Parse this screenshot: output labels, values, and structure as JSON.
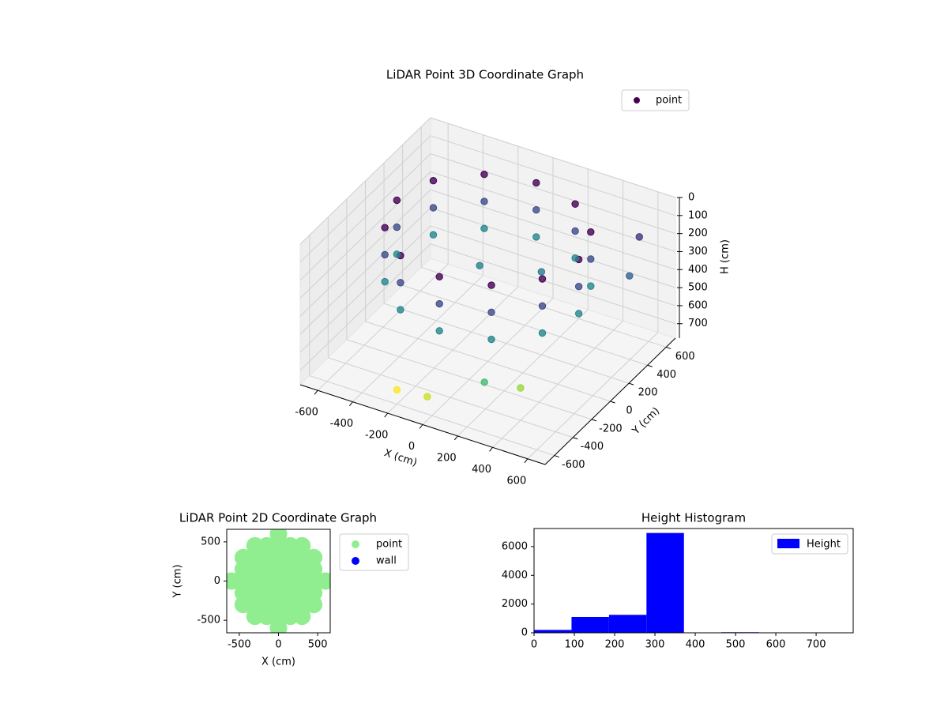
{
  "chart_data": [
    {
      "type": "scatter3d",
      "title": "LiDAR Point 3D Coordinate Graph",
      "x_label": "X (cm)",
      "y_label": "Y (cm)",
      "z_label": "H (cm)",
      "xlim": [
        -700,
        700
      ],
      "ylim": [
        -700,
        700
      ],
      "zlim": [
        780,
        0
      ],
      "xticks": [
        -600,
        -400,
        -200,
        0,
        200,
        400,
        600
      ],
      "yticks": [
        -600,
        -400,
        -200,
        0,
        200,
        400,
        600
      ],
      "zticks": [
        0,
        100,
        200,
        300,
        400,
        500,
        600,
        700
      ],
      "grid": true,
      "colormap": "viridis",
      "legend": "upper right",
      "series": [
        {
          "name": "point",
          "color": "#440154",
          "x": [
            520,
            450,
            260,
            0,
            -260,
            -450,
            -520,
            -450,
            -260,
            0,
            260,
            450,
            520,
            450,
            260,
            0,
            -260,
            -450,
            -520,
            -450,
            -260,
            0,
            260,
            450,
            520,
            450,
            260,
            0,
            -260,
            -450,
            -520,
            -450,
            -260,
            0,
            260,
            450,
            600,
            650,
            300,
            0,
            -200,
            400,
            200,
            -100
          ],
          "y": [
            0,
            260,
            450,
            520,
            450,
            260,
            0,
            -260,
            -450,
            -520,
            -450,
            -260,
            0,
            260,
            450,
            520,
            450,
            260,
            0,
            -260,
            -450,
            -520,
            -450,
            -260,
            0,
            260,
            450,
            520,
            450,
            260,
            0,
            -260,
            -450,
            -520,
            -450,
            -260,
            500,
            300,
            -600,
            -650,
            -600,
            -400,
            200,
            100
          ],
          "h": [
            50,
            50,
            50,
            50,
            50,
            50,
            50,
            50,
            50,
            50,
            50,
            50,
            200,
            200,
            200,
            200,
            200,
            200,
            200,
            200,
            200,
            200,
            200,
            200,
            350,
            350,
            350,
            350,
            350,
            350,
            350,
            350,
            350,
            350,
            350,
            350,
            150,
            250,
            500,
            650,
            700,
            600,
            320,
            330
          ]
        }
      ]
    },
    {
      "type": "scatter",
      "title": "LiDAR Point 2D Coordinate Graph",
      "x_label": "X (cm)",
      "y_label": "Y (cm)",
      "xlim": [
        -660,
        660
      ],
      "ylim": [
        -660,
        660
      ],
      "xticks": [
        -500,
        0,
        500
      ],
      "yticks": [
        -500,
        0,
        500
      ],
      "legend": "outside right",
      "series": [
        {
          "name": "point",
          "color": "#90ee90",
          "x": [
            -600,
            -450,
            -450,
            -450,
            -450,
            -450,
            -300,
            -300,
            -300,
            -300,
            -300,
            -300,
            -300,
            -150,
            -150,
            -150,
            -150,
            -150,
            -150,
            -150,
            0,
            0,
            0,
            0,
            0,
            0,
            0,
            0,
            0,
            150,
            150,
            150,
            150,
            150,
            150,
            150,
            300,
            300,
            300,
            300,
            300,
            300,
            300,
            450,
            450,
            450,
            450,
            450,
            600
          ],
          "y": [
            0,
            -300,
            -150,
            0,
            150,
            300,
            -450,
            -300,
            -150,
            0,
            150,
            300,
            450,
            -450,
            -300,
            -150,
            0,
            150,
            300,
            450,
            -600,
            -450,
            -300,
            -150,
            0,
            150,
            300,
            450,
            600,
            -450,
            -300,
            -150,
            0,
            150,
            300,
            450,
            -450,
            -300,
            -150,
            0,
            150,
            300,
            450,
            -300,
            -150,
            0,
            150,
            300,
            0
          ]
        },
        {
          "name": "wall",
          "color": "#0000ff",
          "x": [],
          "y": []
        }
      ]
    },
    {
      "type": "histogram",
      "title": "Height Histogram",
      "xlim": [
        0,
        792
      ],
      "ylim": [
        0,
        7260
      ],
      "xticks": [
        0,
        100,
        200,
        300,
        400,
        500,
        600,
        700
      ],
      "yticks": [
        0,
        2000,
        4000,
        6000
      ],
      "legend": "upper right",
      "bins": [
        0,
        93,
        186,
        279,
        372,
        465,
        558,
        651,
        744
      ],
      "series": [
        {
          "name": "Height",
          "color": "#0000ff",
          "values": [
            200,
            1100,
            1250,
            6950,
            0,
            40,
            20,
            20
          ]
        }
      ]
    }
  ]
}
